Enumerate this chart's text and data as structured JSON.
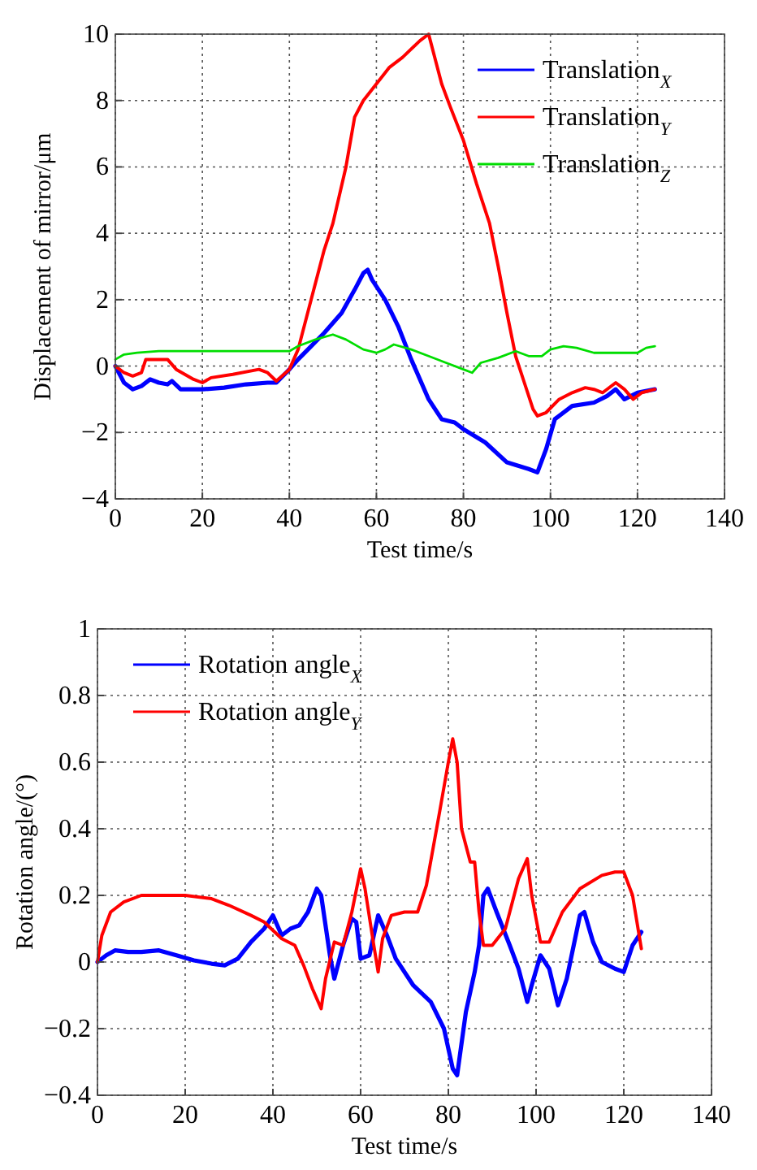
{
  "chart_data": [
    {
      "type": "line",
      "xlabel": "Test time/s",
      "ylabel": "Displacement of mirror/μm",
      "xlim": [
        0,
        140
      ],
      "ylim": [
        -4,
        10
      ],
      "xticks": [
        0,
        20,
        40,
        60,
        80,
        100,
        120,
        140
      ],
      "yticks": [
        {
          "value": -4,
          "label": "−4"
        },
        {
          "value": -2,
          "label": "−2"
        },
        0,
        2,
        4,
        6,
        8,
        10
      ],
      "grid": true,
      "legend": "top right",
      "line_style": "solid",
      "marker": "none",
      "series": [
        {
          "name": "Translation$_{X}$",
          "color": "#0000ff",
          "x": [
            0,
            2,
            4,
            6,
            8,
            10,
            12,
            13,
            15,
            20,
            25,
            30,
            35,
            37,
            40,
            42,
            45,
            48,
            52,
            55,
            57,
            58,
            59,
            62,
            65,
            68,
            72,
            75,
            78,
            80,
            85,
            90,
            95,
            97,
            99,
            101,
            105,
            110,
            113,
            115,
            117,
            120,
            124
          ],
          "values": [
            0,
            -0.5,
            -0.7,
            -0.6,
            -0.4,
            -0.5,
            -0.55,
            -0.45,
            -0.7,
            -0.7,
            -0.65,
            -0.55,
            -0.5,
            -0.5,
            -0.1,
            0.2,
            0.6,
            1.0,
            1.6,
            2.3,
            2.8,
            2.9,
            2.6,
            2.0,
            1.2,
            0.2,
            -1.0,
            -1.6,
            -1.7,
            -1.9,
            -2.3,
            -2.9,
            -3.1,
            -3.2,
            -2.5,
            -1.6,
            -1.2,
            -1.1,
            -0.9,
            -0.7,
            -1.0,
            -0.8,
            -0.7
          ]
        },
        {
          "name": "Translation$_{Y}$",
          "color": "#ff0000",
          "x": [
            0,
            2,
            4,
            6,
            7,
            12,
            14,
            18,
            20,
            22,
            27,
            33,
            35,
            37,
            40,
            42,
            45,
            48,
            50,
            53,
            55,
            57,
            60,
            63,
            66,
            70,
            72,
            75,
            77,
            80,
            83,
            86,
            88,
            90,
            92,
            94,
            96,
            97,
            99,
            102,
            105,
            108,
            110,
            112,
            115,
            117,
            119,
            121,
            124
          ],
          "values": [
            0,
            -0.2,
            -0.3,
            -0.2,
            0.2,
            0.2,
            -0.1,
            -0.4,
            -0.5,
            -0.35,
            -0.25,
            -0.1,
            -0.2,
            -0.45,
            -0.1,
            0.5,
            2.0,
            3.5,
            4.3,
            6.0,
            7.5,
            8.0,
            8.5,
            9.0,
            9.3,
            9.8,
            10.0,
            8.5,
            7.8,
            6.8,
            5.5,
            4.3,
            3.0,
            1.6,
            0.3,
            -0.5,
            -1.3,
            -1.5,
            -1.4,
            -1.0,
            -0.8,
            -0.65,
            -0.7,
            -0.8,
            -0.5,
            -0.7,
            -1.0,
            -0.8,
            -0.7
          ]
        },
        {
          "name": "Translation$_{Z}$",
          "color": "#00dd00",
          "x": [
            0,
            2,
            5,
            10,
            20,
            30,
            40,
            42,
            46,
            50,
            53,
            57,
            60,
            62,
            64,
            68,
            72,
            76,
            80,
            82,
            84,
            88,
            92,
            95,
            98,
            100,
            103,
            106,
            110,
            115,
            120,
            122,
            124
          ],
          "values": [
            0.2,
            0.35,
            0.4,
            0.45,
            0.45,
            0.45,
            0.45,
            0.6,
            0.8,
            0.95,
            0.8,
            0.5,
            0.4,
            0.5,
            0.65,
            0.5,
            0.3,
            0.1,
            -0.1,
            -0.2,
            0.1,
            0.25,
            0.45,
            0.3,
            0.3,
            0.5,
            0.6,
            0.55,
            0.4,
            0.4,
            0.4,
            0.55,
            0.6
          ]
        }
      ]
    },
    {
      "type": "line",
      "xlabel": "Test time/s",
      "ylabel": "Rotation angle/(°)",
      "xlim": [
        0,
        140
      ],
      "ylim": [
        -0.4,
        1
      ],
      "xticks": [
        0,
        20,
        40,
        60,
        80,
        100,
        120,
        140
      ],
      "yticks": [
        {
          "value": -0.4,
          "label": "−0.4"
        },
        {
          "value": -0.2,
          "label": "−0.2"
        },
        0,
        0.2,
        0.4,
        0.6,
        0.8,
        1
      ],
      "grid": true,
      "legend": "top left",
      "line_style": "solid",
      "marker": "none",
      "series": [
        {
          "name": "Rotation angle$_{X}$",
          "color": "#0000ff",
          "x": [
            0,
            2,
            4,
            7,
            10,
            14,
            18,
            22,
            26,
            29,
            32,
            35,
            38,
            40,
            42,
            44,
            46,
            48,
            50,
            51,
            53,
            54,
            56,
            58,
            59,
            60,
            62,
            64,
            66,
            68,
            72,
            76,
            79,
            81,
            82,
            84,
            86,
            87,
            88,
            89,
            91,
            94,
            96,
            98,
            99,
            101,
            103,
            105,
            107,
            110,
            111,
            113,
            115,
            118,
            120,
            122,
            124
          ],
          "values": [
            0,
            0.02,
            0.035,
            0.03,
            0.03,
            0.035,
            0.02,
            0.005,
            -0.005,
            -0.01,
            0.01,
            0.06,
            0.1,
            0.14,
            0.08,
            0.1,
            0.11,
            0.15,
            0.22,
            0.2,
            0.02,
            -0.05,
            0.05,
            0.13,
            0.12,
            0.01,
            0.02,
            0.14,
            0.08,
            0.01,
            -0.07,
            -0.12,
            -0.2,
            -0.32,
            -0.34,
            -0.15,
            -0.03,
            0.05,
            0.2,
            0.22,
            0.15,
            0.05,
            -0.02,
            -0.12,
            -0.07,
            0.02,
            -0.02,
            -0.13,
            -0.05,
            0.14,
            0.15,
            0.06,
            0.0,
            -0.02,
            -0.03,
            0.05,
            0.09
          ]
        },
        {
          "name": "Rotation angle$_{Y}$",
          "color": "#ff0000",
          "x": [
            0,
            1,
            3,
            6,
            10,
            20,
            26,
            30,
            35,
            38,
            42,
            45,
            47,
            49,
            51,
            52,
            54,
            56,
            58,
            60,
            61,
            63,
            64,
            65,
            67,
            70,
            73,
            75,
            78,
            80,
            81,
            82,
            83,
            85,
            86,
            87,
            88,
            90,
            93,
            96,
            98,
            99,
            101,
            103,
            106,
            110,
            115,
            118,
            120,
            122,
            124
          ],
          "values": [
            0,
            0.08,
            0.15,
            0.18,
            0.2,
            0.2,
            0.19,
            0.17,
            0.14,
            0.12,
            0.07,
            0.05,
            -0.01,
            -0.08,
            -0.14,
            -0.05,
            0.06,
            0.05,
            0.15,
            0.28,
            0.22,
            0.05,
            -0.03,
            0.07,
            0.14,
            0.15,
            0.15,
            0.23,
            0.45,
            0.6,
            0.67,
            0.6,
            0.4,
            0.3,
            0.3,
            0.15,
            0.05,
            0.05,
            0.1,
            0.25,
            0.31,
            0.2,
            0.06,
            0.06,
            0.15,
            0.22,
            0.26,
            0.27,
            0.27,
            0.2,
            0.04
          ]
        }
      ]
    }
  ]
}
